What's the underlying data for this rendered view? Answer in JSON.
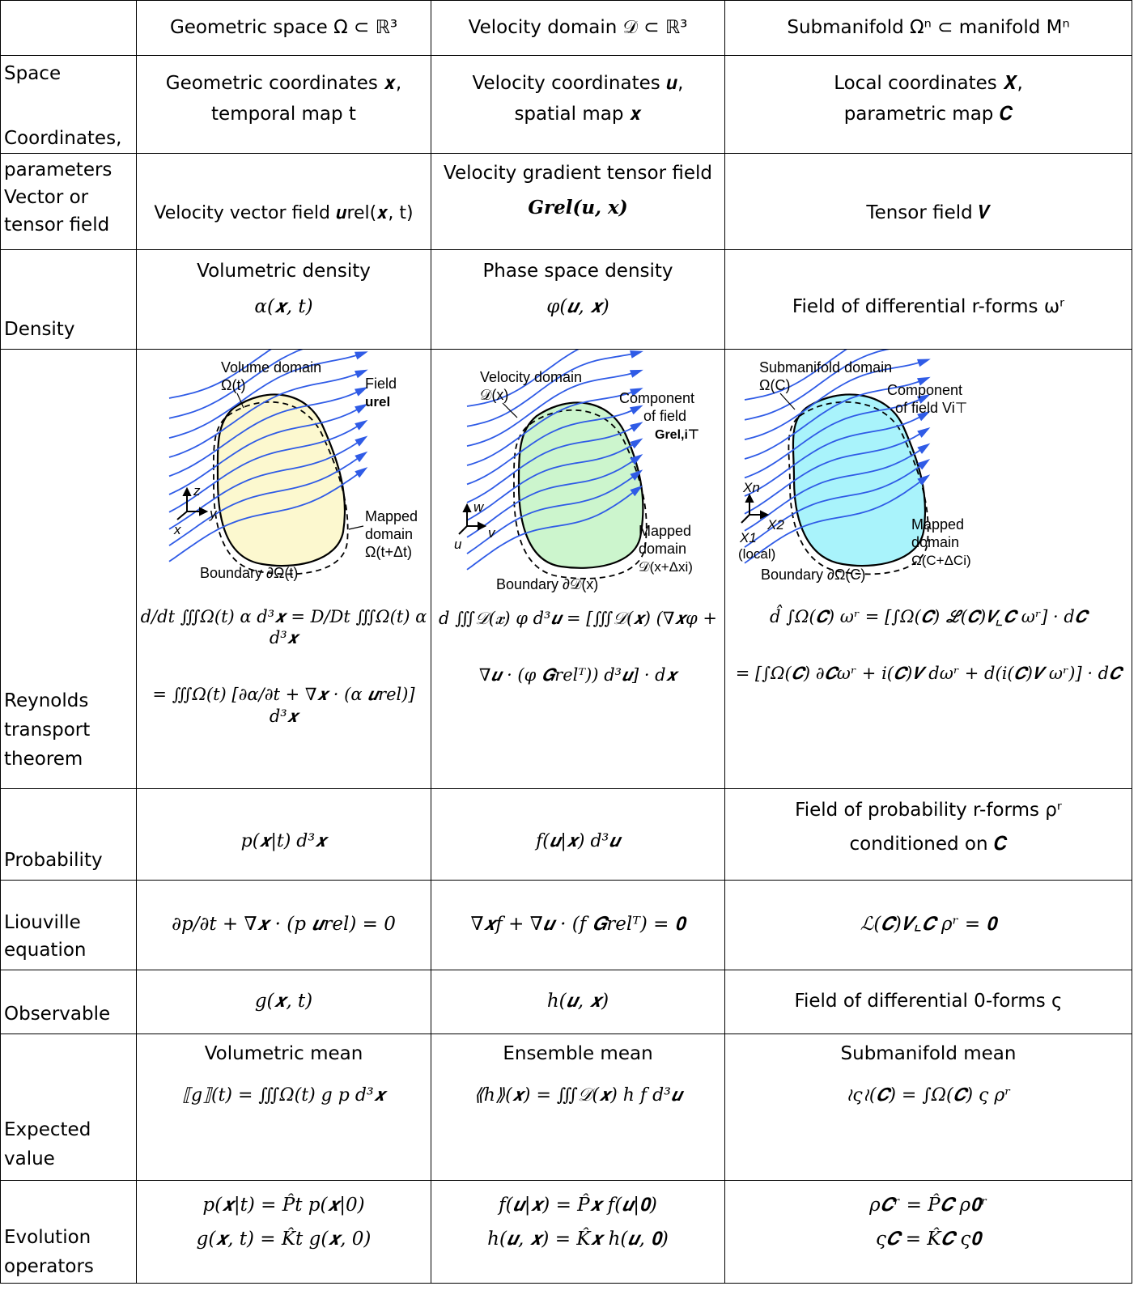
{
  "header": {
    "col1": "Geometric space Ω ⊂ ℝ³",
    "col2": "Velocity domain 𝒟 ⊂ ℝ³",
    "col3": "Submanifold Ωⁿ ⊂ manifold Mⁿ"
  },
  "rows": {
    "space": {
      "label_a": "Space",
      "label_b": "Coordinates,",
      "label_c": "parameters",
      "c1_l1": "Geometric coordinates 𝒙,",
      "c1_l2": "temporal map t",
      "c2_l1": "Velocity coordinates 𝒖,",
      "c2_l2": "spatial map 𝒙",
      "c3_l1": "Local coordinates 𝑿,",
      "c3_l2": "parametric map 𝑪"
    },
    "field": {
      "label_a": "Vector or",
      "label_b": "tensor field",
      "c1": "Velocity vector field 𝒖rel(𝒙, t)",
      "c2_l1": "Velocity gradient tensor field",
      "c2_l2": "𝑮rel(𝒖, 𝒙)",
      "c3": "Tensor field 𝑽"
    },
    "density": {
      "label": "Density",
      "c1_l1": "Volumetric density",
      "c1_l2": "α(𝒙, t)",
      "c2_l1": "Phase space density",
      "c2_l2": "φ(𝒖, 𝒙)",
      "c3": "Field of differential r-forms ωʳ"
    },
    "reynolds": {
      "label_l1": "Reynolds",
      "label_l2": "transport",
      "label_l3": "theorem",
      "fig1": {
        "domain_label": "Volume domain",
        "domain_sym": "Ω(t)",
        "field_label": "Field",
        "field_sym": "urel",
        "mapped_l1": "Mapped",
        "mapped_l2": "domain",
        "mapped_sym": "Ω(t+Δt)",
        "boundary": "Boundary ∂Ω(t)",
        "axes": [
          "z",
          "y",
          "x"
        ]
      },
      "fig2": {
        "domain_label": "Velocity domain",
        "domain_sym": "𝒟(x)",
        "field_l1": "Component",
        "field_l2": "of field",
        "field_sym": "Grel,i⊤",
        "mapped_l1": "Mapped",
        "mapped_l2": "domain",
        "mapped_sym": "𝒟(x+Δxi)",
        "boundary": "Boundary ∂𝒟(x)",
        "axes": [
          "w",
          "v",
          "u"
        ]
      },
      "fig3": {
        "domain_label": "Submanifold domain",
        "domain_sym": "Ω(C)",
        "field_l1": "Component",
        "field_l2": "of field Vi⊤",
        "mapped_l1": "Mapped",
        "mapped_l2": "domain",
        "mapped_sym": "Ω(C+ΔCi)",
        "boundary": "Boundary ∂Ω(C)",
        "axes": [
          "Xn",
          "X2",
          "X1",
          "(local)"
        ]
      },
      "eq1_l1": "d/dt ∭Ω(t) α d³𝒙 = D/Dt ∭Ω(t) α d³𝒙",
      "eq1_l2": "= ∭Ω(t) [∂α/∂t + ∇𝒙 · (α 𝒖rel)] d³𝒙",
      "eq2_l1": "d ∭𝒟(𝒙) φ d³𝒖 = [∭𝒟(𝒙) (∇𝒙φ +",
      "eq2_l2": "∇𝒖 · (φ 𝑮relᵀ)) d³𝒖] · d𝒙",
      "eq3_l1": "d̂ ∫Ω(𝑪) ωʳ = [∫Ω(𝑪) ℒ(𝑪)𝑽⌞𝑪 ωʳ] · d𝑪",
      "eq3_l2": "= [∫Ω(𝑪) ∂𝑪ωʳ + i(𝑪)𝑽 dωʳ + d(i(𝑪)𝑽 ωʳ)] · d𝑪"
    },
    "probability": {
      "label": "Probability",
      "c1": "p(𝒙|t) d³𝒙",
      "c2": "f(𝒖|𝒙) d³𝒖",
      "c3_l1": "Field of probability r-forms ρʳ",
      "c3_l2": "conditioned on 𝑪"
    },
    "liouville": {
      "label_l1": "Liouville",
      "label_l2": "equation",
      "c1": "∂p/∂t + ∇𝒙 · (p 𝒖rel) = 0",
      "c2": "∇𝒙f + ∇𝒖 · (f 𝑮relᵀ) = 𝟎",
      "c3": "ℒ(𝑪)𝑽⌞𝑪 ρʳ = 𝟎"
    },
    "observable": {
      "label": "Observable",
      "c1": "g(𝒙, t)",
      "c2": "h(𝒖, 𝒙)",
      "c3": "Field of differential 0-forms ς"
    },
    "expected": {
      "label_l1": "Expected",
      "label_l2": "value",
      "c1_title": "Volumetric mean",
      "c1_eq": "⟦g⟧(t) = ∭Ω(t) g p d³𝒙",
      "c2_title": "Ensemble mean",
      "c2_eq": "⟪h⟫(𝒙) = ∭𝒟(𝒙) h f d³𝒖",
      "c3_title": "Submanifold mean",
      "c3_eq": "≀ς≀(𝑪) = ∫Ω(𝑪) ς ρʳ"
    },
    "evolution": {
      "label_l1": "Evolution",
      "label_l2": "operators",
      "c1_l1": "p(𝒙|t) = P̂t p(𝒙|0)",
      "c1_l2": "g(𝒙, t) = K̂t g(𝒙, 0)",
      "c2_l1": "f(𝒖|𝒙) = P̂𝒙 f(𝒖|𝟎)",
      "c2_l2": "h(𝒖, 𝒙) = K̂𝒙 h(𝒖, 𝟎)",
      "c3_l1": "ρ𝑪ʳ = P̂𝑪 ρ𝟎ʳ",
      "c3_l2": "ς𝑪 = K̂𝑪 ς𝟎"
    }
  },
  "colors": {
    "stream": "#2f5be6",
    "fill1": "#fcf8cf",
    "fill2": "#ccf5cd",
    "fill3": "#a9f3fb"
  }
}
